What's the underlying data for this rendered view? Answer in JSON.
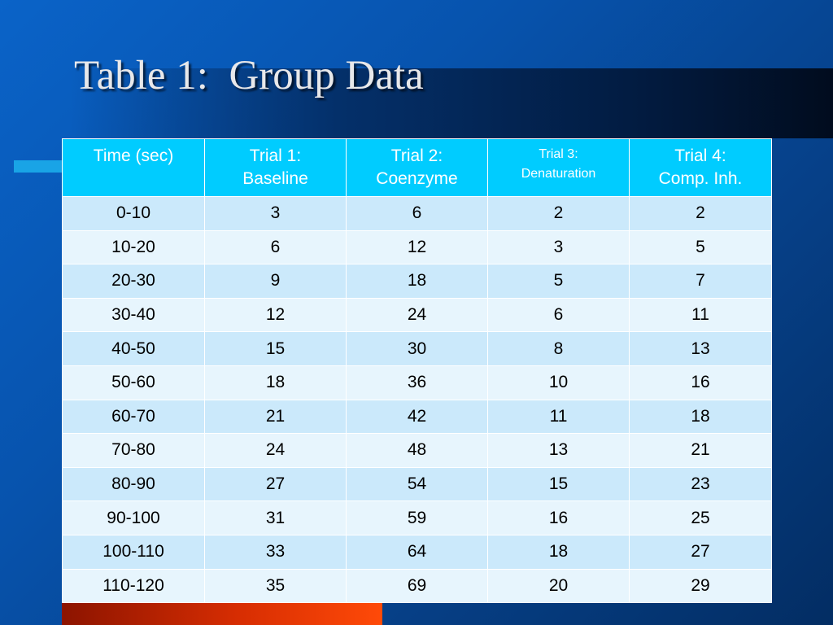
{
  "slide": {
    "title": "Table 1:  Group Data"
  },
  "colors": {
    "header_fill": "#00ccff",
    "row_fill_odd": "#cbe9fb",
    "row_fill_even": "#e7f5fd",
    "background": "#0753ad",
    "accent_red": "#e63a04",
    "accent_cyan": "#19a4e6"
  },
  "chart_data": {
    "type": "table",
    "title": "Table 1:  Group Data",
    "columns": [
      {
        "line1": "Time (sec)",
        "line2": ""
      },
      {
        "line1": "Trial 1:",
        "line2": "Baseline"
      },
      {
        "line1": "Trial 2:",
        "line2": "Coenzyme"
      },
      {
        "line1": "Trial 3:",
        "line2": "Denaturation"
      },
      {
        "line1": "Trial 4:",
        "line2": "Comp. Inh."
      }
    ],
    "rows": [
      [
        "0-10",
        "3",
        "6",
        "2",
        "2"
      ],
      [
        "10-20",
        "6",
        "12",
        "3",
        "5"
      ],
      [
        "20-30",
        "9",
        "18",
        "5",
        "7"
      ],
      [
        "30-40",
        "12",
        "24",
        "6",
        "11"
      ],
      [
        "40-50",
        "15",
        "30",
        "8",
        "13"
      ],
      [
        "50-60",
        "18",
        "36",
        "10",
        "16"
      ],
      [
        "60-70",
        "21",
        "42",
        "11",
        "18"
      ],
      [
        "70-80",
        "24",
        "48",
        "13",
        "21"
      ],
      [
        "80-90",
        "27",
        "54",
        "15",
        "23"
      ],
      [
        "90-100",
        "31",
        "59",
        "16",
        "25"
      ],
      [
        "100-110",
        "33",
        "64",
        "18",
        "27"
      ],
      [
        "110-120",
        "35",
        "69",
        "20",
        "29"
      ]
    ]
  }
}
